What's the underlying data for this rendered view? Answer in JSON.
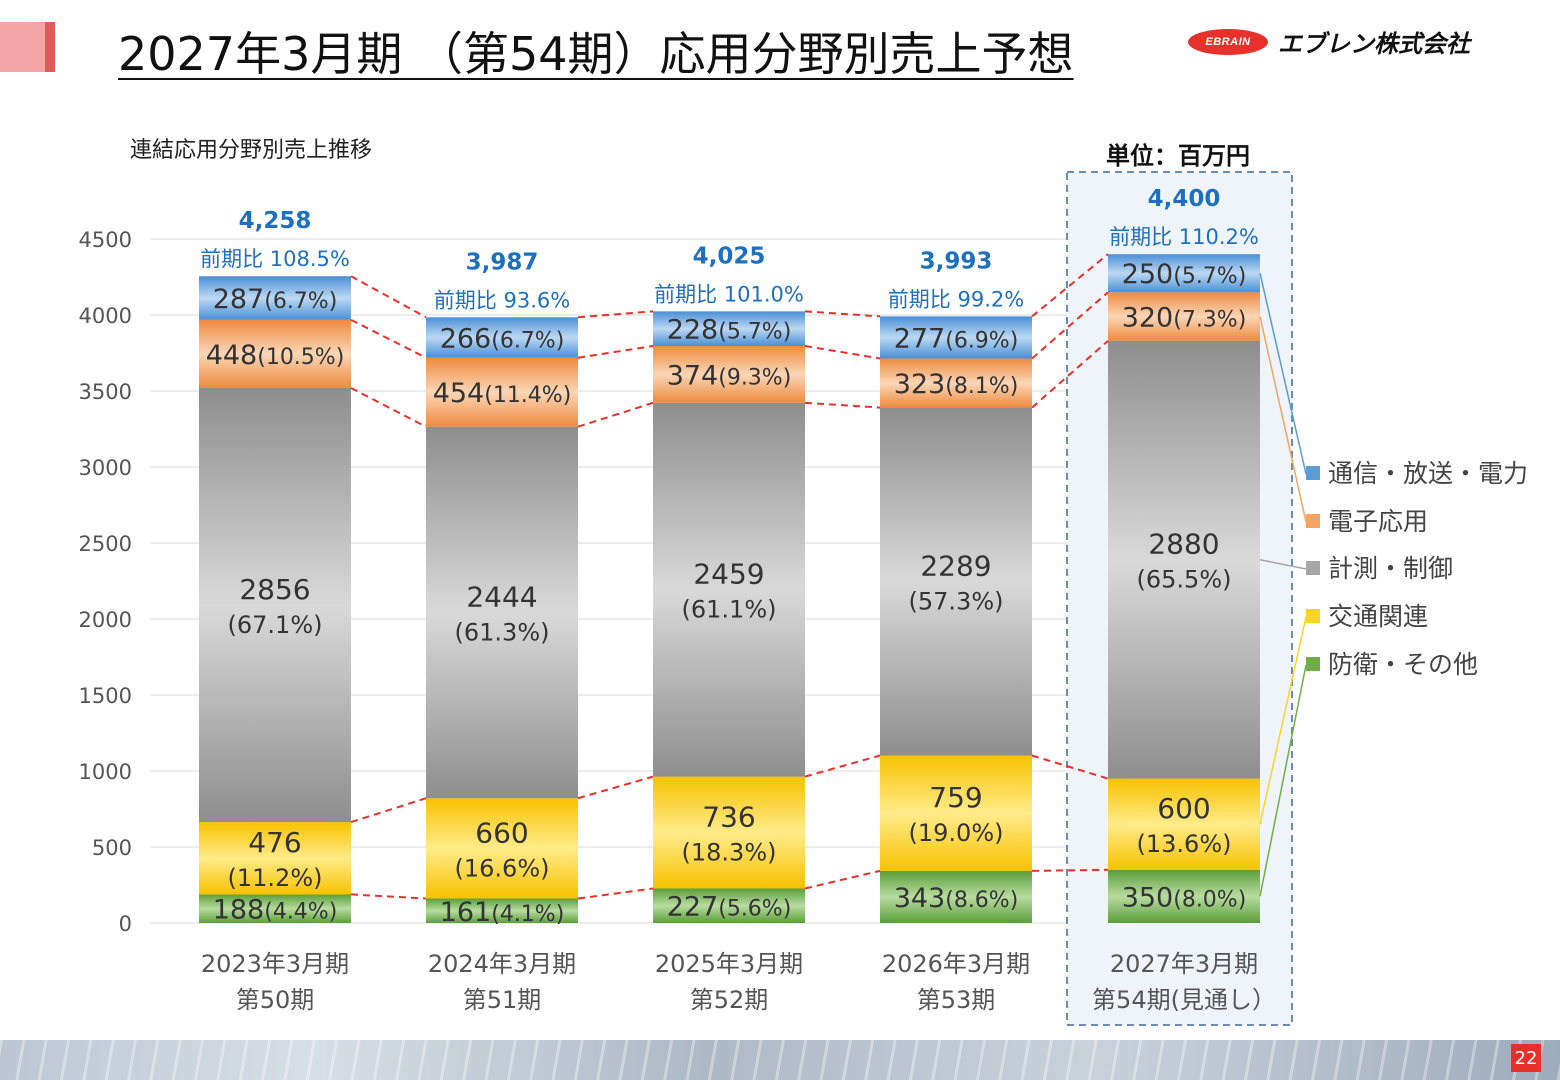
{
  "header": {
    "title": "2027年3月期 （第54期）応用分野別売上予想",
    "logo_mark": "EBRAIN",
    "logo_name": "エブレン株式会社"
  },
  "subtitle": "連結応用分野別売上推移",
  "unit": "単位：百万円",
  "page_number": "22",
  "colors": {
    "comm": "#5b9bd5",
    "elec": "#f4a460",
    "measure": "#a6a6a6",
    "traffic": "#ffd324",
    "defense": "#70ad47",
    "connector": "#e8302a",
    "total_label": "#1f6fbf",
    "highlight": "#6a8db0"
  },
  "chart_data": {
    "type": "bar",
    "stacked": true,
    "ylim": [
      0,
      4500
    ],
    "yticks": [
      "0",
      "500",
      "1000",
      "1500",
      "2000",
      "2500",
      "3000",
      "3500",
      "4000",
      "4500"
    ],
    "categories": [
      [
        "2023年3月期",
        "第50期"
      ],
      [
        "2024年3月期",
        "第51期"
      ],
      [
        "2025年3月期",
        "第52期"
      ],
      [
        "2026年3月期",
        "第53期"
      ],
      [
        "2027年3月期",
        "第54期(見通し）"
      ]
    ],
    "totals": [
      "4,258",
      "3,987",
      "4,025",
      "3,993",
      "4,400"
    ],
    "yoy": [
      "前期比 108.5%",
      "前期比 93.6%",
      "前期比 101.0%",
      "前期比 99.2%",
      "前期比 110.2%"
    ],
    "series": [
      {
        "name": "防衛・その他",
        "key": "defense",
        "values": [
          188,
          161,
          227,
          343,
          350
        ],
        "pct": [
          "(4.4%)",
          "(4.1%)",
          "(5.6%)",
          "(8.6%)",
          "(8.0%)"
        ]
      },
      {
        "name": "交通関連",
        "key": "traffic",
        "values": [
          476,
          660,
          736,
          759,
          600
        ],
        "pct": [
          "(11.2%)",
          "(16.6%)",
          "(18.3%)",
          "(19.0%)",
          "(13.6%)"
        ]
      },
      {
        "name": "計測・制御",
        "key": "measure",
        "values": [
          2856,
          2444,
          2459,
          2289,
          2880
        ],
        "pct": [
          "(67.1%)",
          "(61.3%)",
          "(61.1%)",
          "(57.3%)",
          "(65.5%)"
        ]
      },
      {
        "name": "電子応用",
        "key": "elec",
        "values": [
          448,
          454,
          374,
          323,
          320
        ],
        "pct": [
          "(10.5%)",
          "(11.4%)",
          "(9.3%)",
          "(8.1%)",
          "(7.3%)"
        ]
      },
      {
        "name": "通信・放送・電力",
        "key": "comm",
        "values": [
          287,
          266,
          228,
          277,
          250
        ],
        "pct": [
          "(6.7%)",
          "(6.7%)",
          "(5.7%)",
          "(6.9%)",
          "(5.7%)"
        ]
      }
    ],
    "legend": {
      "position": "right",
      "order": [
        "通信・放送・電力",
        "電子応用",
        "計測・制御",
        "交通関連",
        "防衛・その他"
      ]
    },
    "grid": true,
    "highlighted_category": 4
  }
}
